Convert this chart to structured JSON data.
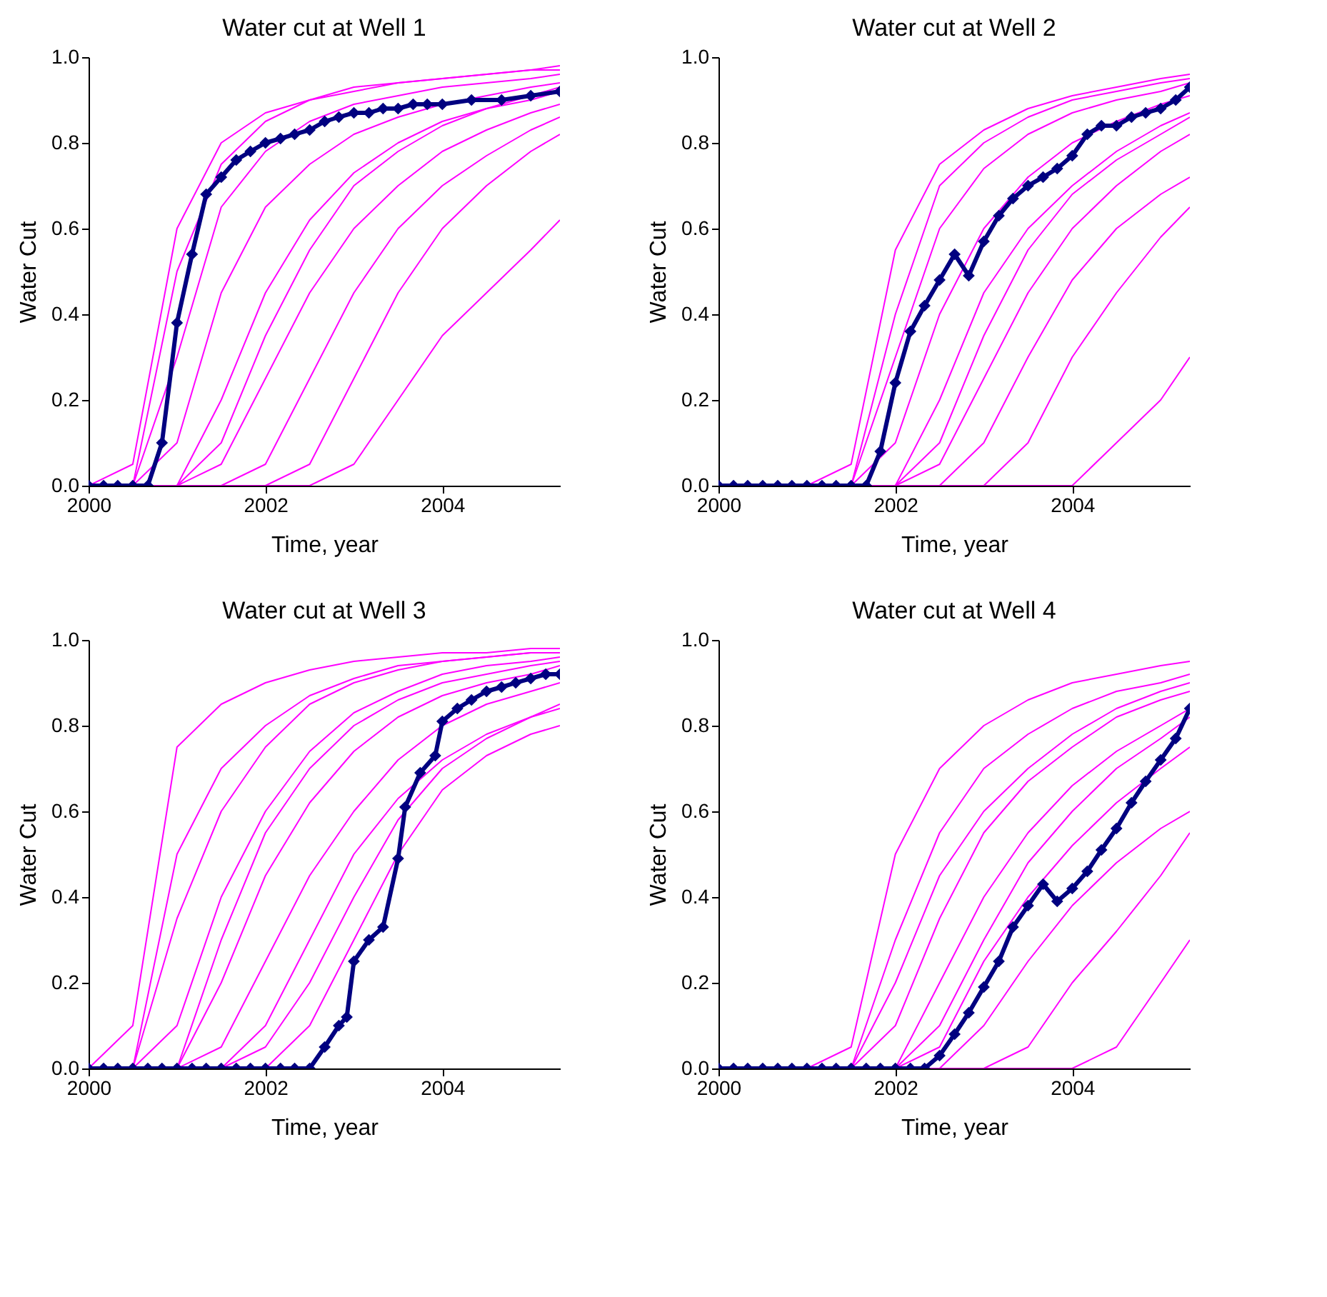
{
  "chart_data": [
    {
      "type": "line",
      "title": "Water cut at Well 1",
      "xlabel": "Time, year",
      "ylabel": "Water Cut",
      "xlim": [
        2000,
        2005.33
      ],
      "ylim": [
        0,
        1
      ],
      "xticks": [
        2000,
        2002,
        2004
      ],
      "yticks": [
        {
          "value": 0,
          "label": "0.0"
        },
        {
          "value": 0.2,
          "label": "0.2"
        },
        {
          "value": 0.4,
          "label": "0.4"
        },
        {
          "value": 0.6,
          "label": "0.6"
        },
        {
          "value": 0.8,
          "label": "0.8"
        },
        {
          "value": 1,
          "label": "1.0"
        }
      ],
      "grid": false,
      "x": [
        2000,
        2000.5,
        2001,
        2001.5,
        2002,
        2002.5,
        2003,
        2003.5,
        2004,
        2004.5,
        2005,
        2005.33
      ],
      "series": [
        {
          "color": "#ff00ff",
          "marker": "none",
          "values": [
            0,
            0.05,
            0.6,
            0.8,
            0.87,
            0.9,
            0.93,
            0.94,
            0.95,
            0.96,
            0.97,
            0.97
          ]
        },
        {
          "color": "#ff00ff",
          "marker": "none",
          "values": [
            0,
            0,
            0.3,
            0.65,
            0.78,
            0.85,
            0.89,
            0.91,
            0.93,
            0.94,
            0.95,
            0.96
          ]
        },
        {
          "color": "#ff00ff",
          "marker": "none",
          "values": [
            0,
            0,
            0.1,
            0.45,
            0.65,
            0.75,
            0.82,
            0.86,
            0.89,
            0.91,
            0.93,
            0.94
          ]
        },
        {
          "color": "#ff00ff",
          "marker": "none",
          "values": [
            0,
            0,
            0,
            0.2,
            0.45,
            0.62,
            0.73,
            0.8,
            0.85,
            0.88,
            0.9,
            0.92
          ]
        },
        {
          "color": "#ff00ff",
          "marker": "none",
          "values": [
            0,
            0,
            0,
            0.05,
            0.25,
            0.45,
            0.6,
            0.7,
            0.78,
            0.83,
            0.87,
            0.89
          ]
        },
        {
          "color": "#ff00ff",
          "marker": "none",
          "values": [
            0,
            0,
            0,
            0,
            0.05,
            0.25,
            0.45,
            0.6,
            0.7,
            0.77,
            0.83,
            0.86
          ]
        },
        {
          "color": "#ff00ff",
          "marker": "none",
          "values": [
            0,
            0,
            0,
            0,
            0,
            0.05,
            0.25,
            0.45,
            0.6,
            0.7,
            0.78,
            0.82
          ]
        },
        {
          "color": "#ff00ff",
          "marker": "none",
          "values": [
            0,
            0,
            0,
            0,
            0,
            0,
            0.05,
            0.2,
            0.35,
            0.45,
            0.55,
            0.62
          ]
        },
        {
          "color": "#ff00ff",
          "marker": "none",
          "values": [
            0,
            0,
            0.5,
            0.75,
            0.85,
            0.9,
            0.92,
            0.94,
            0.95,
            0.96,
            0.97,
            0.98
          ]
        },
        {
          "color": "#ff00ff",
          "marker": "none",
          "values": [
            0,
            0,
            0,
            0.1,
            0.35,
            0.55,
            0.7,
            0.78,
            0.84,
            0.88,
            0.91,
            0.93
          ]
        },
        {
          "color": "#000080",
          "marker": "diamond",
          "x": [
            2000,
            2000.17,
            2000.33,
            2000.5,
            2000.67,
            2000.83,
            2001,
            2001.17,
            2001.33,
            2001.5,
            2001.67,
            2001.83,
            2002,
            2002.17,
            2002.33,
            2002.5,
            2002.67,
            2002.83,
            2003,
            2003.17,
            2003.33,
            2003.5,
            2003.67,
            2003.83,
            2004,
            2004.33,
            2004.67,
            2005,
            2005.33
          ],
          "values": [
            0,
            0,
            0,
            0,
            0,
            0.1,
            0.38,
            0.54,
            0.68,
            0.72,
            0.76,
            0.78,
            0.8,
            0.81,
            0.82,
            0.83,
            0.85,
            0.86,
            0.87,
            0.87,
            0.88,
            0.88,
            0.89,
            0.89,
            0.89,
            0.9,
            0.9,
            0.91,
            0.92
          ]
        }
      ]
    },
    {
      "type": "line",
      "title": "Water cut at Well 2",
      "xlabel": "Time, year",
      "ylabel": "Water Cut",
      "xlim": [
        2000,
        2005.33
      ],
      "ylim": [
        0,
        1
      ],
      "xticks": [
        2000,
        2002,
        2004
      ],
      "yticks": [
        {
          "value": 0,
          "label": "0.0"
        },
        {
          "value": 0.2,
          "label": "0.2"
        },
        {
          "value": 0.4,
          "label": "0.4"
        },
        {
          "value": 0.6,
          "label": "0.6"
        },
        {
          "value": 0.8,
          "label": "0.8"
        },
        {
          "value": 1,
          "label": "1.0"
        }
      ],
      "grid": false,
      "x": [
        2000,
        2000.5,
        2001,
        2001.5,
        2002,
        2002.5,
        2003,
        2003.5,
        2004,
        2004.5,
        2005,
        2005.33
      ],
      "series": [
        {
          "color": "#ff00ff",
          "marker": "none",
          "values": [
            0,
            0,
            0,
            0.05,
            0.55,
            0.75,
            0.83,
            0.88,
            0.91,
            0.93,
            0.95,
            0.96
          ]
        },
        {
          "color": "#ff00ff",
          "marker": "none",
          "values": [
            0,
            0,
            0,
            0,
            0.3,
            0.6,
            0.74,
            0.82,
            0.87,
            0.9,
            0.92,
            0.94
          ]
        },
        {
          "color": "#ff00ff",
          "marker": "none",
          "values": [
            0,
            0,
            0,
            0,
            0.1,
            0.4,
            0.6,
            0.72,
            0.8,
            0.85,
            0.89,
            0.91
          ]
        },
        {
          "color": "#ff00ff",
          "marker": "none",
          "values": [
            0,
            0,
            0,
            0,
            0,
            0.2,
            0.45,
            0.6,
            0.7,
            0.78,
            0.84,
            0.87
          ]
        },
        {
          "color": "#ff00ff",
          "marker": "none",
          "values": [
            0,
            0,
            0,
            0,
            0,
            0.05,
            0.25,
            0.45,
            0.6,
            0.7,
            0.78,
            0.82
          ]
        },
        {
          "color": "#ff00ff",
          "marker": "none",
          "values": [
            0,
            0,
            0,
            0,
            0,
            0,
            0.1,
            0.3,
            0.48,
            0.6,
            0.68,
            0.72
          ]
        },
        {
          "color": "#ff00ff",
          "marker": "none",
          "values": [
            0,
            0,
            0,
            0,
            0,
            0,
            0,
            0.1,
            0.3,
            0.45,
            0.58,
            0.65
          ]
        },
        {
          "color": "#ff00ff",
          "marker": "none",
          "values": [
            0,
            0,
            0,
            0,
            0,
            0,
            0,
            0,
            0,
            0.1,
            0.2,
            0.3
          ]
        },
        {
          "color": "#ff00ff",
          "marker": "none",
          "values": [
            0,
            0,
            0,
            0,
            0.4,
            0.7,
            0.8,
            0.86,
            0.9,
            0.92,
            0.94,
            0.95
          ]
        },
        {
          "color": "#ff00ff",
          "marker": "none",
          "values": [
            0,
            0,
            0,
            0,
            0,
            0.1,
            0.35,
            0.55,
            0.68,
            0.76,
            0.82,
            0.86
          ]
        },
        {
          "color": "#000080",
          "marker": "diamond",
          "x": [
            2000,
            2000.17,
            2000.33,
            2000.5,
            2000.67,
            2000.83,
            2001,
            2001.17,
            2001.33,
            2001.5,
            2001.67,
            2001.83,
            2002,
            2002.17,
            2002.33,
            2002.5,
            2002.67,
            2002.83,
            2003,
            2003.17,
            2003.33,
            2003.5,
            2003.67,
            2003.83,
            2004,
            2004.17,
            2004.33,
            2004.5,
            2004.67,
            2004.83,
            2005,
            2005.17,
            2005.33
          ],
          "values": [
            0,
            0,
            0,
            0,
            0,
            0,
            0,
            0,
            0,
            0,
            0,
            0.08,
            0.24,
            0.36,
            0.42,
            0.48,
            0.54,
            0.49,
            0.57,
            0.63,
            0.67,
            0.7,
            0.72,
            0.74,
            0.77,
            0.82,
            0.84,
            0.84,
            0.86,
            0.87,
            0.88,
            0.9,
            0.93
          ]
        }
      ]
    },
    {
      "type": "line",
      "title": "Water cut at Well 3",
      "xlabel": "Time, year",
      "ylabel": "Water Cut",
      "xlim": [
        2000,
        2005.33
      ],
      "ylim": [
        0,
        1
      ],
      "xticks": [
        2000,
        2002,
        2004
      ],
      "yticks": [
        {
          "value": 0,
          "label": "0.0"
        },
        {
          "value": 0.2,
          "label": "0.2"
        },
        {
          "value": 0.4,
          "label": "0.4"
        },
        {
          "value": 0.6,
          "label": "0.6"
        },
        {
          "value": 0.8,
          "label": "0.8"
        },
        {
          "value": 1,
          "label": "1.0"
        }
      ],
      "grid": false,
      "x": [
        2000,
        2000.5,
        2001,
        2001.5,
        2002,
        2002.5,
        2003,
        2003.5,
        2004,
        2004.5,
        2005,
        2005.33
      ],
      "series": [
        {
          "color": "#ff00ff",
          "marker": "none",
          "values": [
            0,
            0.1,
            0.75,
            0.85,
            0.9,
            0.93,
            0.95,
            0.96,
            0.97,
            0.97,
            0.98,
            0.98
          ]
        },
        {
          "color": "#ff00ff",
          "marker": "none",
          "values": [
            0,
            0,
            0.35,
            0.6,
            0.75,
            0.85,
            0.9,
            0.93,
            0.95,
            0.96,
            0.97,
            0.97
          ]
        },
        {
          "color": "#ff00ff",
          "marker": "none",
          "values": [
            0,
            0,
            0.1,
            0.4,
            0.6,
            0.74,
            0.83,
            0.88,
            0.92,
            0.94,
            0.95,
            0.96
          ]
        },
        {
          "color": "#ff00ff",
          "marker": "none",
          "values": [
            0,
            0,
            0,
            0.2,
            0.45,
            0.62,
            0.74,
            0.82,
            0.87,
            0.9,
            0.92,
            0.94
          ]
        },
        {
          "color": "#ff00ff",
          "marker": "none",
          "values": [
            0,
            0,
            0,
            0.05,
            0.25,
            0.45,
            0.6,
            0.72,
            0.8,
            0.85,
            0.88,
            0.9
          ]
        },
        {
          "color": "#ff00ff",
          "marker": "none",
          "values": [
            0,
            0,
            0,
            0,
            0.1,
            0.3,
            0.5,
            0.63,
            0.72,
            0.78,
            0.82,
            0.85
          ]
        },
        {
          "color": "#ff00ff",
          "marker": "none",
          "values": [
            0,
            0,
            0,
            0,
            0,
            0.1,
            0.3,
            0.5,
            0.65,
            0.73,
            0.78,
            0.8
          ]
        },
        {
          "color": "#ff00ff",
          "marker": "none",
          "values": [
            0,
            0,
            0.5,
            0.7,
            0.8,
            0.87,
            0.91,
            0.94,
            0.95,
            0.96,
            0.97,
            0.97
          ]
        },
        {
          "color": "#ff00ff",
          "marker": "none",
          "values": [
            0,
            0,
            0,
            0.3,
            0.55,
            0.7,
            0.8,
            0.86,
            0.9,
            0.92,
            0.94,
            0.95
          ]
        },
        {
          "color": "#ff00ff",
          "marker": "none",
          "values": [
            0,
            0,
            0,
            0,
            0.05,
            0.2,
            0.4,
            0.58,
            0.7,
            0.77,
            0.82,
            0.84
          ]
        },
        {
          "color": "#000080",
          "marker": "diamond",
          "x": [
            2000,
            2000.17,
            2000.33,
            2000.5,
            2000.67,
            2000.83,
            2001,
            2001.17,
            2001.33,
            2001.5,
            2001.67,
            2001.83,
            2002,
            2002.17,
            2002.33,
            2002.5,
            2002.67,
            2002.83,
            2002.92,
            2003,
            2003.17,
            2003.33,
            2003.5,
            2003.58,
            2003.75,
            2003.92,
            2004,
            2004.17,
            2004.33,
            2004.5,
            2004.67,
            2004.83,
            2005,
            2005.17,
            2005.33
          ],
          "values": [
            0,
            0,
            0,
            0,
            0,
            0,
            0,
            0,
            0,
            0,
            0,
            0,
            0,
            0,
            0,
            0,
            0.05,
            0.1,
            0.12,
            0.25,
            0.3,
            0.33,
            0.49,
            0.61,
            0.69,
            0.73,
            0.81,
            0.84,
            0.86,
            0.88,
            0.89,
            0.9,
            0.91,
            0.92,
            0.92
          ]
        }
      ]
    },
    {
      "type": "line",
      "title": "Water cut at Well 4",
      "xlabel": "Time, year",
      "ylabel": "Water Cut",
      "xlim": [
        2000,
        2005.33
      ],
      "ylim": [
        0,
        1
      ],
      "xticks": [
        2000,
        2002,
        2004
      ],
      "yticks": [
        {
          "value": 0,
          "label": "0.0"
        },
        {
          "value": 0.2,
          "label": "0.2"
        },
        {
          "value": 0.4,
          "label": "0.4"
        },
        {
          "value": 0.6,
          "label": "0.6"
        },
        {
          "value": 0.8,
          "label": "0.8"
        },
        {
          "value": 1,
          "label": "1.0"
        }
      ],
      "grid": false,
      "x": [
        2000,
        2000.5,
        2001,
        2001.5,
        2002,
        2002.5,
        2003,
        2003.5,
        2004,
        2004.5,
        2005,
        2005.33
      ],
      "series": [
        {
          "color": "#ff00ff",
          "marker": "none",
          "values": [
            0,
            0,
            0,
            0.05,
            0.5,
            0.7,
            0.8,
            0.86,
            0.9,
            0.92,
            0.94,
            0.95
          ]
        },
        {
          "color": "#ff00ff",
          "marker": "none",
          "values": [
            0,
            0,
            0,
            0,
            0.3,
            0.55,
            0.7,
            0.78,
            0.84,
            0.88,
            0.9,
            0.92
          ]
        },
        {
          "color": "#ff00ff",
          "marker": "none",
          "values": [
            0,
            0,
            0,
            0,
            0.1,
            0.35,
            0.55,
            0.67,
            0.75,
            0.82,
            0.86,
            0.88
          ]
        },
        {
          "color": "#ff00ff",
          "marker": "none",
          "values": [
            0,
            0,
            0,
            0,
            0,
            0.2,
            0.4,
            0.55,
            0.66,
            0.74,
            0.8,
            0.84
          ]
        },
        {
          "color": "#ff00ff",
          "marker": "none",
          "values": [
            0,
            0,
            0,
            0,
            0,
            0.05,
            0.25,
            0.4,
            0.52,
            0.62,
            0.7,
            0.75
          ]
        },
        {
          "color": "#ff00ff",
          "marker": "none",
          "values": [
            0,
            0,
            0,
            0,
            0,
            0,
            0.1,
            0.25,
            0.38,
            0.48,
            0.56,
            0.6
          ]
        },
        {
          "color": "#ff00ff",
          "marker": "none",
          "values": [
            0,
            0,
            0,
            0,
            0,
            0,
            0,
            0.05,
            0.2,
            0.32,
            0.45,
            0.55
          ]
        },
        {
          "color": "#ff00ff",
          "marker": "none",
          "values": [
            0,
            0,
            0,
            0,
            0,
            0,
            0,
            0,
            0,
            0.05,
            0.2,
            0.3
          ]
        },
        {
          "color": "#ff00ff",
          "marker": "none",
          "values": [
            0,
            0,
            0,
            0,
            0.2,
            0.45,
            0.6,
            0.7,
            0.78,
            0.84,
            0.88,
            0.9
          ]
        },
        {
          "color": "#ff00ff",
          "marker": "none",
          "values": [
            0,
            0,
            0,
            0,
            0,
            0.1,
            0.3,
            0.48,
            0.6,
            0.7,
            0.77,
            0.82
          ]
        },
        {
          "color": "#000080",
          "marker": "diamond",
          "x": [
            2000,
            2000.17,
            2000.33,
            2000.5,
            2000.67,
            2000.83,
            2001,
            2001.17,
            2001.33,
            2001.5,
            2001.67,
            2001.83,
            2002,
            2002.17,
            2002.33,
            2002.5,
            2002.67,
            2002.83,
            2003,
            2003.17,
            2003.33,
            2003.5,
            2003.67,
            2003.83,
            2004,
            2004.17,
            2004.33,
            2004.5,
            2004.67,
            2004.83,
            2005,
            2005.17,
            2005.33
          ],
          "values": [
            0,
            0,
            0,
            0,
            0,
            0,
            0,
            0,
            0,
            0,
            0,
            0,
            0,
            0,
            0,
            0.03,
            0.08,
            0.13,
            0.19,
            0.25,
            0.33,
            0.38,
            0.43,
            0.39,
            0.42,
            0.46,
            0.51,
            0.56,
            0.62,
            0.67,
            0.72,
            0.77,
            0.84
          ]
        }
      ]
    }
  ]
}
